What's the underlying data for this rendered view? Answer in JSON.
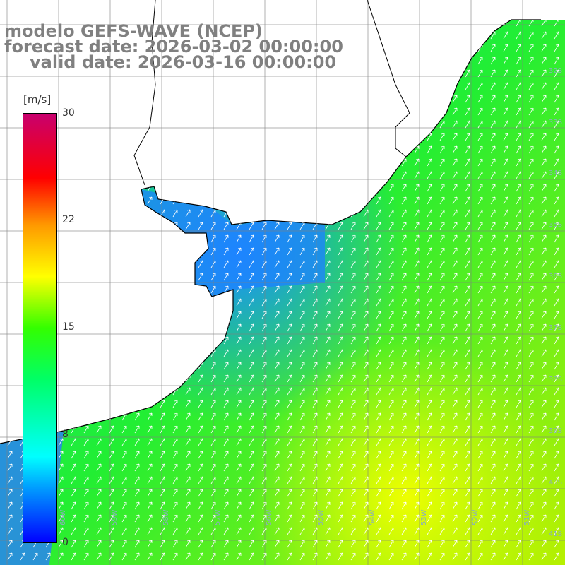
{
  "title": {
    "line1": "modelo GEFS-WAVE (NCEP)",
    "line2": "forecast date: 2026-03-02 00:00:00",
    "line3": "valid date: 2026-03-16 00:00:00"
  },
  "colorbar": {
    "unit": "[m/s]",
    "ticks": [
      "30",
      "22",
      "15",
      "8",
      "0"
    ],
    "colors": [
      "#0000ff",
      "#00a0ff",
      "#00ffff",
      "#00ff66",
      "#33ff00",
      "#ffff00",
      "#ff9900",
      "#ff0000",
      "#c8006e"
    ]
  },
  "map": {
    "lat_labels": [
      "32S",
      "33S",
      "34S",
      "35S",
      "36S",
      "37S",
      "38S",
      "39S",
      "40S",
      "41S"
    ],
    "lon_labels": [
      "60W",
      "59W",
      "58W",
      "57W",
      "56W",
      "55W",
      "54W",
      "53W",
      "52W",
      "51W"
    ],
    "land_color": "#ffffff",
    "grid_color": "#808080",
    "coast_color": "#000000",
    "arrow_color": "#ffffff",
    "wind_direction": "from SW toward NE"
  }
}
